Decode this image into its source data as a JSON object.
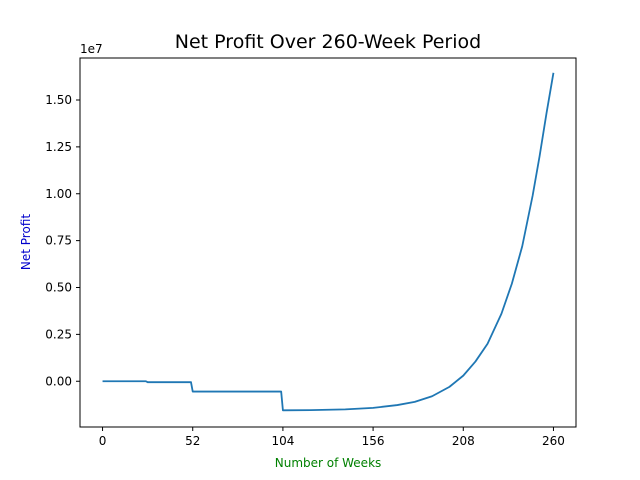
{
  "chart_data": {
    "type": "line",
    "title": "Net Profit Over 260-Week Period",
    "xlabel": "Number of Weeks",
    "ylabel": "Net Profit",
    "y_offset_label": "1e7",
    "xlabel_color": "#008000",
    "ylabel_color": "#0000cc",
    "line_color": "#1f77b4",
    "xlim": [
      -13,
      273
    ],
    "ylim": [
      -2440000,
      17240000
    ],
    "grid": false,
    "x_ticks": [
      0,
      52,
      104,
      156,
      208,
      260
    ],
    "x_tick_labels": [
      "0",
      "52",
      "104",
      "156",
      "208",
      "260"
    ],
    "y_ticks": [
      0,
      2500000,
      5000000,
      7500000,
      10000000,
      12500000,
      15000000
    ],
    "y_tick_labels": [
      "0.00",
      "0.25",
      "0.50",
      "0.75",
      "1.00",
      "1.25",
      "1.50"
    ],
    "series": [
      {
        "x": [
          0,
          25,
          26,
          51,
          52,
          103,
          104,
          120,
          140,
          156,
          170,
          180,
          190,
          200,
          208,
          215,
          222,
          230,
          236,
          242,
          248,
          252,
          256,
          260
        ],
        "y": [
          0,
          0,
          -50000,
          -50000,
          -550000,
          -550000,
          -1550000,
          -1540000,
          -1500000,
          -1420000,
          -1270000,
          -1100000,
          -800000,
          -300000,
          300000,
          1050000,
          2000000,
          3600000,
          5200000,
          7200000,
          9900000,
          12000000,
          14300000,
          16450000
        ]
      }
    ]
  }
}
